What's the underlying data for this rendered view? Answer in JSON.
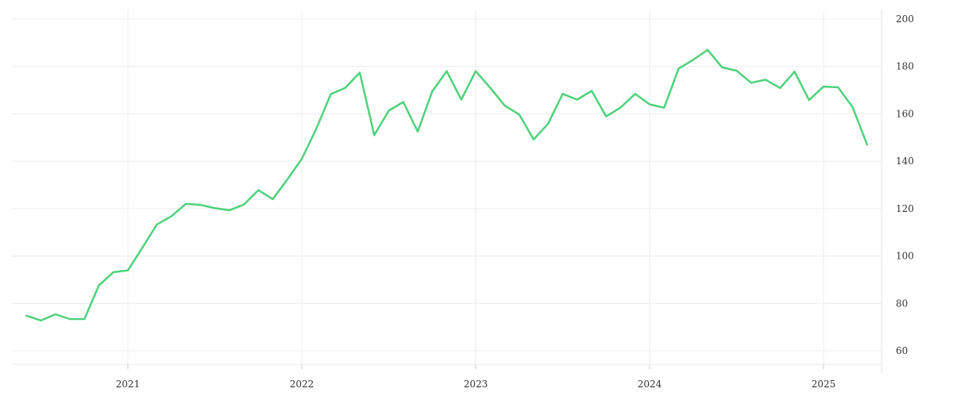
{
  "chart_data": {
    "type": "line",
    "title": "",
    "xlabel": "",
    "ylabel": "",
    "ylim": [
      55,
      203
    ],
    "y_ticks": [
      60,
      80,
      100,
      120,
      140,
      160,
      180,
      200
    ],
    "x_ticks": [
      "2021",
      "2022",
      "2023",
      "2024",
      "2025"
    ],
    "grid": true,
    "y_axis_side": "right",
    "line_color": "#4fd27c",
    "series": [
      {
        "x": [
          "2020-06",
          "2020-07",
          "2020-08",
          "2020-09",
          "2020-10",
          "2020-11",
          "2020-12",
          "2021-01",
          "2021-02",
          "2021-03",
          "2021-04",
          "2021-05",
          "2021-06",
          "2021-07",
          "2021-08",
          "2021-09",
          "2021-10",
          "2021-11",
          "2021-12",
          "2022-01",
          "2022-02",
          "2022-03",
          "2022-04",
          "2022-05",
          "2022-06",
          "2022-07",
          "2022-08",
          "2022-09",
          "2022-10",
          "2022-11",
          "2022-12",
          "2023-01",
          "2023-02",
          "2023-03",
          "2023-04",
          "2023-05",
          "2023-06",
          "2023-07",
          "2023-08",
          "2023-09",
          "2023-10",
          "2023-11",
          "2023-12",
          "2024-01",
          "2024-02",
          "2024-03",
          "2024-04",
          "2024-05",
          "2024-06",
          "2024-07",
          "2024-08",
          "2024-09",
          "2024-10",
          "2024-11",
          "2024-12",
          "2025-01",
          "2025-02",
          "2025-03",
          "2025-04"
        ],
        "values": [
          74.8,
          72.8,
          75.4,
          73.4,
          73.4,
          87.6,
          93.2,
          93.9,
          103.5,
          113.3,
          116.8,
          122.0,
          121.6,
          120.2,
          119.3,
          121.7,
          127.8,
          124.0,
          132.3,
          141.0,
          153.7,
          168.3,
          171.0,
          177.4,
          151.0,
          161.3,
          165.0,
          152.5,
          169.5,
          178.0,
          166.0,
          178.0,
          171.0,
          163.5,
          159.7,
          149.2,
          155.9,
          168.4,
          166.0,
          169.7,
          158.9,
          162.7,
          168.4,
          164.0,
          162.6,
          179.1,
          182.8,
          187.0,
          179.6,
          178.2,
          173.1,
          174.4,
          170.9,
          177.8,
          165.8,
          171.5,
          171.2,
          162.9,
          147.0
        ]
      }
    ]
  }
}
